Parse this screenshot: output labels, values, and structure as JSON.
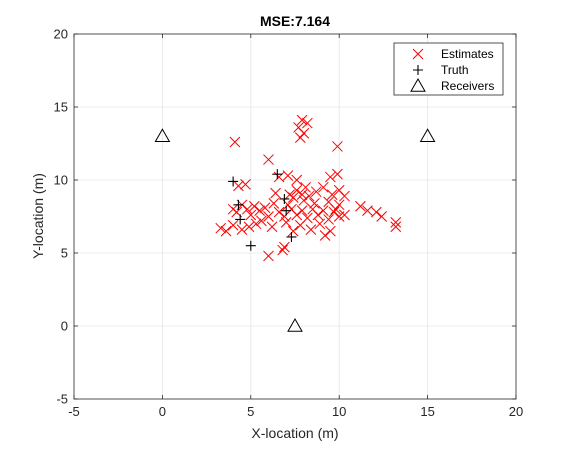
{
  "chart_data": {
    "type": "scatter",
    "title": "MSE:7.164",
    "xlabel": "X-location (m)",
    "ylabel": "Y-location (m)",
    "xlim": [
      -5,
      20
    ],
    "ylim": [
      -5,
      20
    ],
    "xticks": [
      -5,
      0,
      5,
      10,
      15,
      20
    ],
    "yticks": [
      -5,
      0,
      5,
      10,
      15,
      20
    ],
    "grid": true,
    "legend_position": "top-right",
    "series": [
      {
        "name": "Estimates",
        "marker": "x",
        "color": "#ff0000",
        "points": [
          [
            4.1,
            12.6
          ],
          [
            6.0,
            11.4
          ],
          [
            7.9,
            14.1
          ],
          [
            8.2,
            13.9
          ],
          [
            7.7,
            13.6
          ],
          [
            8.0,
            13.2
          ],
          [
            7.8,
            12.9
          ],
          [
            9.9,
            12.3
          ],
          [
            4.3,
            9.6
          ],
          [
            4.7,
            9.7
          ],
          [
            6.6,
            10.2
          ],
          [
            7.1,
            10.3
          ],
          [
            7.6,
            10.0
          ],
          [
            9.5,
            10.2
          ],
          [
            9.9,
            10.4
          ],
          [
            8.1,
            9.5
          ],
          [
            7.2,
            9.0
          ],
          [
            7.4,
            8.8
          ],
          [
            7.6,
            9.3
          ],
          [
            7.9,
            9.0
          ],
          [
            8.3,
            8.9
          ],
          [
            8.7,
            9.2
          ],
          [
            9.1,
            9.5
          ],
          [
            9.6,
            9.0
          ],
          [
            10.0,
            9.3
          ],
          [
            10.3,
            8.9
          ],
          [
            10.0,
            8.3
          ],
          [
            9.4,
            8.5
          ],
          [
            4.0,
            8.0
          ],
          [
            4.2,
            7.8
          ],
          [
            4.5,
            8.3
          ],
          [
            4.8,
            8.0
          ],
          [
            5.0,
            7.6
          ],
          [
            5.2,
            8.2
          ],
          [
            5.5,
            7.9
          ],
          [
            5.8,
            8.1
          ],
          [
            6.0,
            7.5
          ],
          [
            6.3,
            8.4
          ],
          [
            6.6,
            7.8
          ],
          [
            6.9,
            7.5
          ],
          [
            7.3,
            8.0
          ],
          [
            7.6,
            7.6
          ],
          [
            7.9,
            7.9
          ],
          [
            8.2,
            7.4
          ],
          [
            8.5,
            8.0
          ],
          [
            8.8,
            7.6
          ],
          [
            9.1,
            7.9
          ],
          [
            9.4,
            7.3
          ],
          [
            9.7,
            7.8
          ],
          [
            10.0,
            7.5
          ],
          [
            10.3,
            7.6
          ],
          [
            11.2,
            8.2
          ],
          [
            11.6,
            7.9
          ],
          [
            12.1,
            7.8
          ],
          [
            12.4,
            7.5
          ],
          [
            13.2,
            7.1
          ],
          [
            13.2,
            6.8
          ],
          [
            3.3,
            6.7
          ],
          [
            3.6,
            6.5
          ],
          [
            4.0,
            6.9
          ],
          [
            4.5,
            6.6
          ],
          [
            4.9,
            6.8
          ],
          [
            5.3,
            7.0
          ],
          [
            6.2,
            6.8
          ],
          [
            6.8,
            5.2
          ],
          [
            6.9,
            5.4
          ],
          [
            6.0,
            4.8
          ],
          [
            7.4,
            6.5
          ],
          [
            7.8,
            6.9
          ],
          [
            8.4,
            6.6
          ],
          [
            9.2,
            6.2
          ],
          [
            9.5,
            6.5
          ],
          [
            8.9,
            7.0
          ],
          [
            7.0,
            7.1
          ],
          [
            5.6,
            7.2
          ],
          [
            8.6,
            8.4
          ],
          [
            9.8,
            8.0
          ],
          [
            6.4,
            9.1
          ],
          [
            7.1,
            8.3
          ],
          [
            8.0,
            8.6
          ]
        ]
      },
      {
        "name": "Truth",
        "marker": "+",
        "color": "#000000",
        "points": [
          [
            4.0,
            9.9
          ],
          [
            6.5,
            10.4
          ],
          [
            4.3,
            8.3
          ],
          [
            4.4,
            7.3
          ],
          [
            5.0,
            5.5
          ],
          [
            6.9,
            8.7
          ],
          [
            7.0,
            7.9
          ],
          [
            7.3,
            6.1
          ]
        ]
      },
      {
        "name": "Receivers",
        "marker": "triangle",
        "color": "#000000",
        "points": [
          [
            0,
            13
          ],
          [
            15,
            13
          ],
          [
            7.5,
            0
          ]
        ]
      }
    ]
  }
}
